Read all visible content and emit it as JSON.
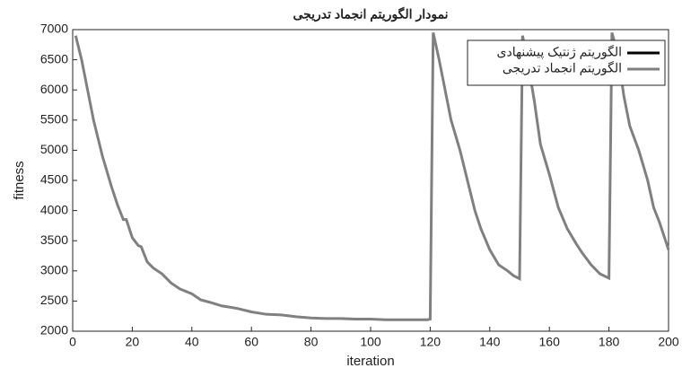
{
  "chart_data": {
    "type": "line",
    "title": "نمودار الگوریتم انجماد تدریجی",
    "xlabel": "iteration",
    "ylabel": "fitness",
    "x": [
      1,
      3,
      5,
      7,
      10,
      13,
      15,
      17,
      18,
      20,
      22,
      23,
      25,
      27,
      30,
      33,
      36,
      40,
      43,
      46,
      50,
      55,
      60,
      65,
      70,
      75,
      80,
      85,
      90,
      95,
      100,
      105,
      110,
      115,
      119,
      120,
      121,
      123,
      125,
      127,
      130,
      133,
      135,
      137,
      140,
      143,
      146,
      148,
      150,
      151,
      153,
      155,
      157,
      160,
      163,
      166,
      169,
      171,
      174,
      177,
      180,
      181,
      183,
      185,
      187,
      190,
      193,
      195,
      197,
      199,
      200
    ],
    "series": [
      {
        "name": "الگوریتم ژنتیک پیشنهادی",
        "color": "#000000",
        "values": [
          null,
          null,
          null,
          null,
          null,
          null,
          null,
          null,
          null,
          null,
          null,
          null,
          null,
          null,
          null,
          null,
          null,
          null,
          null,
          null,
          null,
          null,
          null,
          null,
          null,
          null,
          null,
          null,
          null,
          null,
          null,
          null,
          null,
          null,
          null,
          null,
          null,
          null,
          null,
          null,
          null,
          null,
          null,
          null,
          null,
          null,
          null,
          null,
          null,
          null,
          null,
          null,
          null,
          null,
          null,
          null,
          null,
          null,
          null,
          null,
          null,
          null,
          null,
          null,
          null,
          null,
          null,
          null,
          null,
          null,
          null
        ]
      },
      {
        "name": "الگوریتم انجماد تدریجی",
        "color": "#808080",
        "values": [
          6900,
          6500,
          6000,
          5500,
          4900,
          4400,
          4100,
          3850,
          3850,
          3550,
          3420,
          3400,
          3150,
          3050,
          2950,
          2800,
          2700,
          2620,
          2520,
          2480,
          2420,
          2380,
          2320,
          2280,
          2270,
          2240,
          2220,
          2210,
          2210,
          2200,
          2200,
          2190,
          2190,
          2190,
          2190,
          2200,
          6950,
          6500,
          6000,
          5500,
          5000,
          4400,
          4000,
          3700,
          3350,
          3100,
          3000,
          2920,
          2870,
          6900,
          6400,
          5800,
          5100,
          4600,
          4050,
          3700,
          3450,
          3300,
          3100,
          2950,
          2880,
          6950,
          6600,
          5900,
          5400,
          5000,
          4500,
          4050,
          3800,
          3500,
          3350
        ]
      }
    ],
    "xlim": [
      0,
      200
    ],
    "xticks": [
      0,
      20,
      40,
      60,
      80,
      100,
      120,
      140,
      160,
      180,
      200
    ],
    "ylim": [
      2000,
      7000
    ],
    "yticks": [
      2000,
      2500,
      3000,
      3500,
      4000,
      4500,
      5000,
      5500,
      6000,
      6500,
      7000
    ],
    "grid": false,
    "legend": "upper right"
  }
}
